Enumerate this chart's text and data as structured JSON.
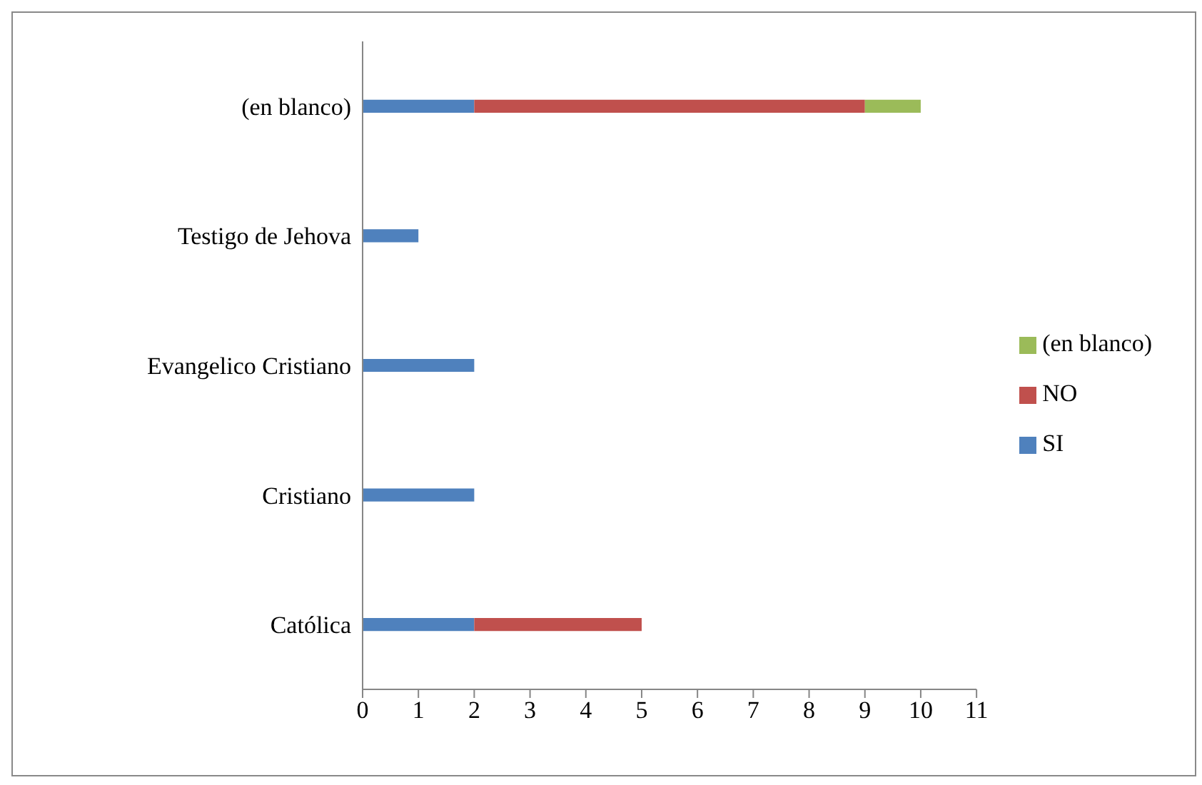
{
  "chart_data": {
    "type": "bar",
    "orientation": "horizontal",
    "stacked": true,
    "categories": [
      "(en blanco)",
      "Testigo de Jehova",
      "Evangelico Cristiano",
      "Cristiano",
      "Católica"
    ],
    "series": [
      {
        "name": "SI",
        "color": "#4f81bd",
        "values": [
          2,
          1,
          2,
          2,
          2
        ]
      },
      {
        "name": "NO",
        "color": "#c0504d",
        "values": [
          7,
          null,
          null,
          null,
          3
        ]
      },
      {
        "name": "(en blanco)",
        "color": "#9bbb59",
        "values": [
          1,
          null,
          null,
          null,
          null
        ]
      }
    ],
    "xlim": [
      0,
      11
    ],
    "xticks": [
      0,
      1,
      2,
      3,
      4,
      5,
      6,
      7,
      8,
      9,
      10,
      11
    ],
    "grid": false,
    "legend": "right"
  }
}
